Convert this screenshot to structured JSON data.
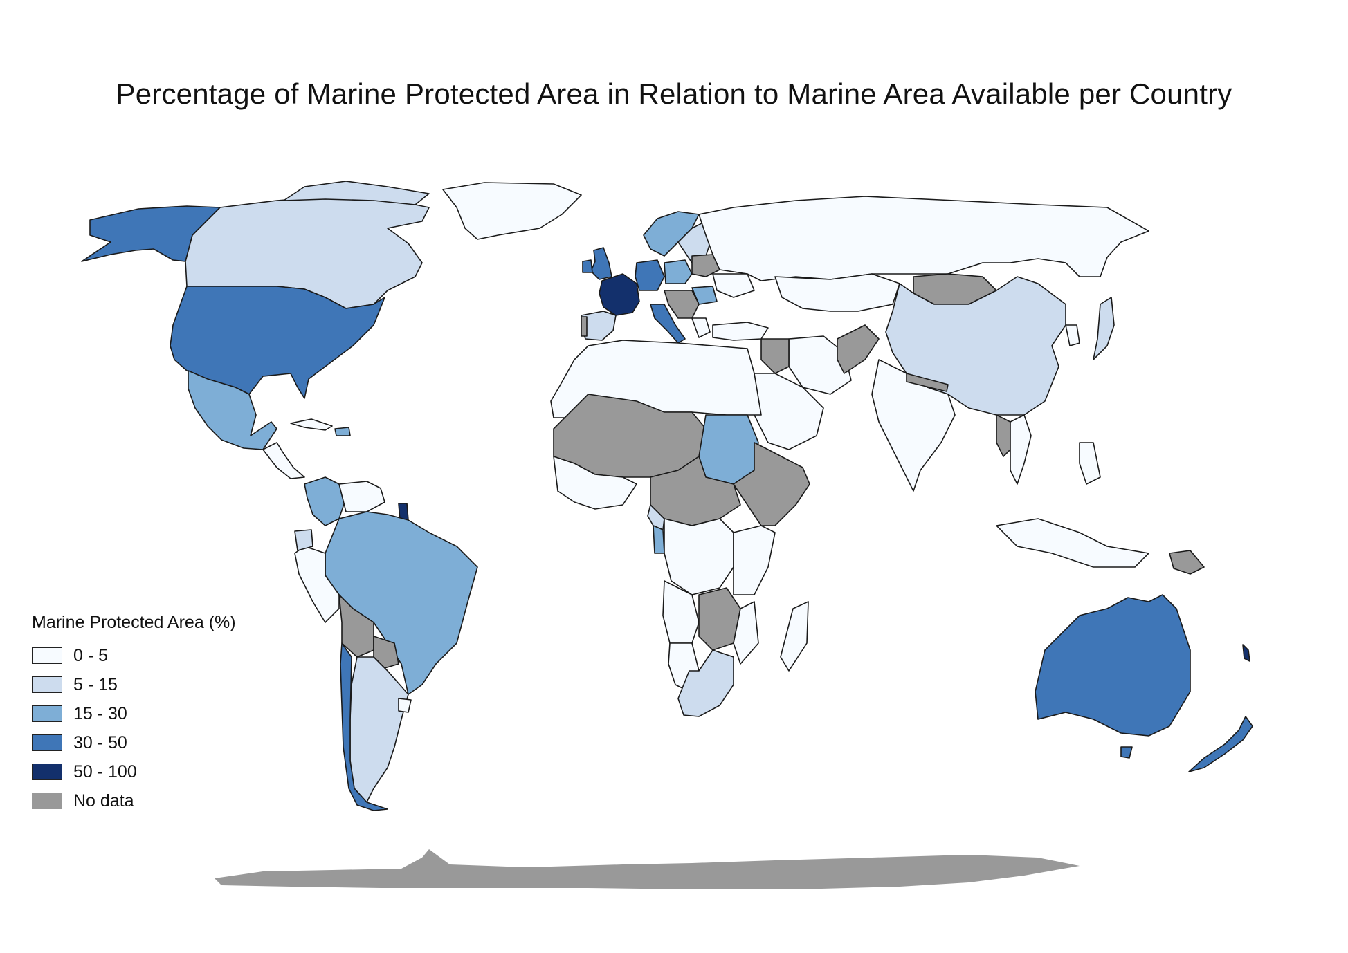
{
  "title": "Percentage of Marine Protected Area in Relation to Marine Area Available per Country",
  "legend": {
    "title": "Marine Protected Area (%)",
    "items": [
      {
        "label": "0 - 5",
        "color": "#f7fbff"
      },
      {
        "label": "5 - 15",
        "color": "#cddcee"
      },
      {
        "label": "15 - 30",
        "color": "#7eaed6"
      },
      {
        "label": "30 - 50",
        "color": "#3f76b7"
      },
      {
        "label": "50 - 100",
        "color": "#13306c"
      },
      {
        "label": "No data",
        "color": "#999999"
      }
    ]
  },
  "colors": {
    "c0_5": "#f7fbff",
    "c5_15": "#cddcee",
    "c15_30": "#7eaed6",
    "c30_50": "#3f76b7",
    "c50_100": "#13306c",
    "nodata": "#999999",
    "border": "#1a1a1a"
  }
}
